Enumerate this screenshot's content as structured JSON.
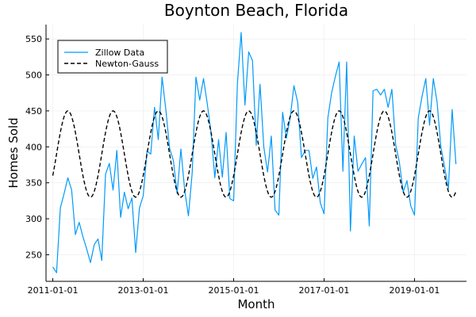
{
  "chart_data": {
    "type": "line",
    "title": "Boynton Beach, Florida",
    "xlabel": "Month",
    "ylabel": "Homes Sold",
    "xlim": [
      2010.85,
      2020.15
    ],
    "ylim": [
      213,
      570
    ],
    "xticks": [
      2011,
      2013,
      2015,
      2017,
      2019
    ],
    "xtick_labels": [
      "2011-01-01",
      "2013-01-01",
      "2015-01-01",
      "2017-01-01",
      "2019-01-01"
    ],
    "yticks": [
      250,
      300,
      350,
      400,
      450,
      500,
      550
    ],
    "ytick_labels": [
      "250",
      "300",
      "350",
      "400",
      "450",
      "500",
      "550"
    ],
    "grid": true,
    "legend_position": "top-left",
    "colors": {
      "zillow": "#009AFA",
      "newton": "#000000",
      "grid": "#EBEBEB",
      "axis": "#000000"
    },
    "series": [
      {
        "name": "Zillow Data",
        "style": "solid",
        "start_year": 2011,
        "step_months": 1,
        "values": [
          233,
          225,
          315,
          335,
          357,
          340,
          278,
          295,
          275,
          258,
          239,
          264,
          272,
          242,
          362,
          377,
          340,
          395,
          302,
          337,
          314,
          329,
          253,
          315,
          332,
          394,
          390,
          455,
          410,
          497,
          452,
          398,
          381,
          335,
          397,
          340,
          304,
          364,
          497,
          465,
          495,
          460,
          420,
          357,
          410,
          358,
          420,
          328,
          325,
          488,
          559,
          458,
          532,
          520,
          402,
          487,
          400,
          365,
          415,
          312,
          305,
          448,
          412,
          440,
          485,
          462,
          385,
          395,
          395,
          356,
          372,
          322,
          307,
          440,
          475,
          498,
          518,
          366,
          518,
          283,
          415,
          366,
          376,
          385,
          290,
          478,
          480,
          472,
          480,
          455,
          480,
          403,
          378,
          337,
          353,
          318,
          305,
          440,
          470,
          495,
          430,
          495,
          462,
          400,
          372,
          342,
          452,
          376
        ]
      },
      {
        "name": "Newton-Gauss",
        "style": "dashed",
        "model": "sinusoid",
        "mean": 390,
        "amplitude": 60,
        "period_months": 12,
        "peak_month_offset": 4,
        "start_year": 2011,
        "end_year": 2019.917
      }
    ]
  }
}
